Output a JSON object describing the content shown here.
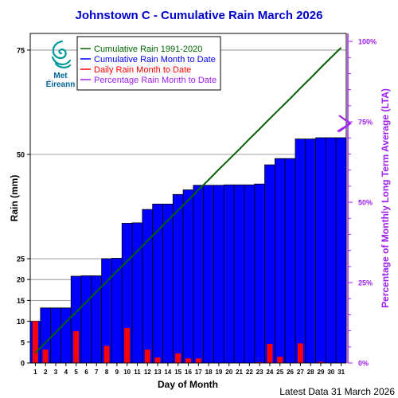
{
  "chart_data": {
    "type": "bar",
    "title": "Johnstown C - Cumulative Rain March   2026",
    "xlabel": "Day of Month",
    "ylabel": "Rain (mm)",
    "y2label": "Percentage  of Monthly Long Term Average (LTA)",
    "footer": "Latest Data 31 March 2026",
    "x": [
      1,
      2,
      3,
      4,
      5,
      6,
      7,
      8,
      9,
      10,
      11,
      12,
      13,
      14,
      15,
      16,
      17,
      18,
      19,
      20,
      21,
      22,
      23,
      24,
      25,
      26,
      27,
      28,
      29,
      30,
      31
    ],
    "ylim": [
      0,
      79
    ],
    "yticks": [
      0,
      5,
      10,
      15,
      20,
      25,
      50,
      75
    ],
    "y2lim": [
      0,
      102.5
    ],
    "y2ticks": [
      "0%",
      "25%",
      "50%",
      "75%",
      "100%"
    ],
    "y2tick_values": [
      0,
      25,
      50,
      75,
      100
    ],
    "lta_marker_percent": 73,
    "series": [
      {
        "name": "Cumulative Rain 1991-2020",
        "type": "line",
        "color": "#006400",
        "values": [
          2.4,
          4.9,
          7.3,
          9.8,
          12.2,
          14.6,
          17.1,
          19.5,
          22.0,
          24.4,
          26.8,
          29.3,
          31.7,
          34.2,
          36.6,
          39.0,
          41.5,
          43.9,
          46.4,
          48.8,
          51.2,
          53.7,
          56.1,
          58.6,
          61.0,
          63.4,
          65.9,
          68.3,
          70.8,
          73.2,
          75.6
        ]
      },
      {
        "name": "Cumulative Rain Month to Date",
        "type": "bar",
        "color": "#0000ff",
        "values": [
          10.0,
          13.2,
          13.2,
          13.2,
          20.8,
          20.9,
          20.9,
          25.0,
          25.1,
          33.5,
          33.6,
          36.8,
          38.1,
          38.1,
          40.4,
          41.5,
          42.6,
          42.6,
          42.6,
          42.7,
          42.7,
          42.7,
          42.9,
          47.5,
          49.0,
          49.0,
          53.7,
          53.7,
          54.0,
          54.0,
          54.0
        ]
      },
      {
        "name": "Daily Rain Month to Date",
        "type": "bar",
        "color": "#ff0000",
        "values": [
          10.0,
          3.2,
          0,
          0,
          7.6,
          0.1,
          0,
          4.1,
          0.1,
          8.4,
          0.1,
          3.2,
          1.3,
          0,
          2.3,
          1.1,
          1.1,
          0,
          0,
          0.1,
          0,
          0,
          0.2,
          4.6,
          1.5,
          0,
          4.7,
          0,
          0.3,
          0,
          0
        ]
      },
      {
        "name": "Percentage Rain Month to Date",
        "type": "legend-only",
        "color": "#a020f0"
      }
    ]
  },
  "logo": {
    "line1": "Met",
    "line2": "Éireann"
  },
  "colors": {
    "title": "#0000cc",
    "right_axis": "#a020f0",
    "grid": "#808080"
  }
}
